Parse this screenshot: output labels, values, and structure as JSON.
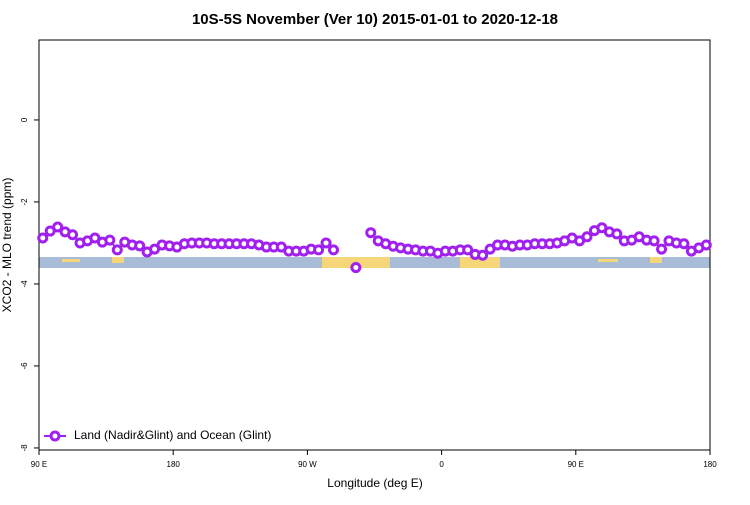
{
  "chart_data": {
    "type": "line",
    "title": "10S-5S November (Ver 10)   2015-01-01 to 2020-12-18",
    "x_label": "Longitude (deg E)",
    "y_label": "XCO2 - MLO trend (ppm)",
    "xlim": [
      90,
      540
    ],
    "ylim": [
      -8.05,
      1.95
    ],
    "xticks": [
      {
        "value": 90,
        "label": "90 E"
      },
      180,
      {
        "value": 270,
        "label": "90 W"
      },
      {
        "value": 360,
        "label": "0"
      },
      {
        "value": 450,
        "label": "90 E"
      },
      {
        "value": 540,
        "label": "180"
      }
    ],
    "yticks": [
      0,
      -2,
      -4,
      -6,
      -8
    ],
    "legend": "bottom-left",
    "x": [
      92.5,
      97.5,
      102.5,
      107.5,
      112.5,
      117.5,
      122.5,
      127.5,
      132.5,
      137.5,
      142.5,
      147.5,
      152.5,
      157.5,
      162.5,
      167.5,
      172.5,
      177.5,
      182.5,
      187.5,
      192.5,
      197.5,
      202.5,
      207.5,
      212.5,
      217.5,
      222.5,
      227.5,
      232.5,
      237.5,
      242.5,
      247.5,
      252.5,
      257.5,
      262.5,
      267.5,
      272.5,
      277.5,
      282.5,
      287.5,
      292.5,
      297.5,
      302.5,
      307.5,
      312.5,
      317.5,
      322.5,
      327.5,
      332.5,
      337.5,
      342.5,
      347.5,
      352.5,
      357.5,
      362.5,
      367.5,
      372.5,
      377.5,
      382.5,
      387.5,
      392.5,
      397.5,
      402.5,
      407.5,
      412.5,
      417.5,
      422.5,
      427.5,
      432.5,
      437.5,
      442.5,
      447.5,
      452.5,
      457.5,
      462.5,
      467.5,
      472.5,
      477.5,
      482.5,
      487.5,
      492.5,
      497.5,
      502.5,
      507.5,
      512.5,
      517.5,
      522.5,
      527.5,
      532.5,
      537.5
    ],
    "series": [
      {
        "name": "Land (Nadir&Glint) and Ocean (Glint)",
        "color": "#a020f0",
        "values": [
          -2.88,
          -2.71,
          -2.61,
          -2.73,
          -2.8,
          -3.0,
          -2.95,
          -2.88,
          -2.98,
          -2.93,
          -3.17,
          -2.98,
          -3.05,
          -3.07,
          -3.22,
          -3.15,
          -3.05,
          -3.07,
          -3.1,
          -3.02,
          -3.0,
          -3.0,
          -3.0,
          -3.02,
          -3.02,
          -3.02,
          -3.02,
          -3.02,
          -3.02,
          -3.05,
          -3.1,
          -3.1,
          -3.1,
          -3.2,
          -3.2,
          -3.2,
          -3.15,
          -3.17,
          -3.0,
          -3.17,
          null,
          null,
          -3.6,
          null,
          -2.75,
          -2.95,
          -3.02,
          -3.08,
          -3.12,
          -3.15,
          -3.17,
          -3.2,
          -3.2,
          -3.25,
          -3.2,
          -3.2,
          -3.17,
          -3.17,
          -3.28,
          -3.3,
          -3.15,
          -3.05,
          -3.05,
          -3.08,
          -3.05,
          -3.05,
          -3.02,
          -3.02,
          -3.02,
          -3.0,
          -2.95,
          -2.88,
          -2.95,
          -2.85,
          -2.7,
          -2.63,
          -2.73,
          -2.78,
          -2.95,
          -2.93,
          -2.85,
          -2.93,
          -2.95,
          -3.15,
          -2.95,
          -3.0,
          -3.02,
          -3.2,
          -3.12,
          -3.05
        ]
      }
    ]
  }
}
